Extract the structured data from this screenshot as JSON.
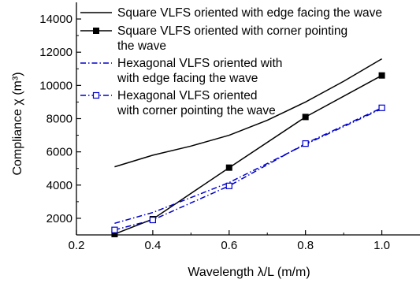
{
  "chart_data": {
    "type": "line",
    "title": "",
    "xlabel": "Wavelength λ/L (m/m)",
    "ylabel": "Compliance χ (m³)",
    "xlim": [
      0.2,
      1.1
    ],
    "ylim": [
      1000,
      15000
    ],
    "x_ticks": [
      0.2,
      0.4,
      0.6,
      0.8,
      1.0
    ],
    "x_tick_labels": [
      "0.2",
      "0.4",
      "0.6",
      "0.8",
      "1.0"
    ],
    "y_ticks": [
      2000,
      4000,
      6000,
      8000,
      10000,
      12000,
      14000
    ],
    "y_tick_labels": [
      "2000",
      "4000",
      "6000",
      "8000",
      "10000",
      "12000",
      "14000"
    ],
    "grid": false,
    "legend_position": "top-left",
    "series": [
      {
        "name_lines": [
          "Square VLFS oriented with edge facing the wave"
        ],
        "color": "#000000",
        "line_style": "solid",
        "marker": "none",
        "points": [
          [
            0.3,
            5100
          ],
          [
            0.4,
            5800
          ],
          [
            0.5,
            6350
          ],
          [
            0.6,
            7000
          ],
          [
            0.7,
            7900
          ],
          [
            0.8,
            9000
          ],
          [
            0.9,
            10250
          ],
          [
            1.0,
            11600
          ]
        ]
      },
      {
        "name_lines": [
          "Square VLFS oriented with corner pointing",
          "the wave"
        ],
        "color": "#000000",
        "line_style": "solid",
        "marker": "filled-square",
        "points": [
          [
            0.3,
            1050
          ],
          [
            0.4,
            1950
          ],
          [
            0.6,
            5050
          ],
          [
            0.8,
            8100
          ],
          [
            1.0,
            10600
          ]
        ]
      },
      {
        "name_lines": [
          "Hexagonal VLFS oriented with",
          "with edge facing the wave"
        ],
        "color": "#0000cc",
        "line_style": "dash-dot",
        "marker": "none",
        "points": [
          [
            0.3,
            1700
          ],
          [
            0.4,
            2350
          ],
          [
            0.6,
            4150
          ],
          [
            0.8,
            6450
          ],
          [
            1.0,
            8600
          ]
        ]
      },
      {
        "name_lines": [
          "Hexagonal VLFS oriented",
          "with corner pointing the wave"
        ],
        "color": "#0000cc",
        "line_style": "dash-dot",
        "marker": "open-square",
        "points": [
          [
            0.3,
            1300
          ],
          [
            0.4,
            1900
          ],
          [
            0.6,
            3950
          ],
          [
            0.8,
            6500
          ],
          [
            1.0,
            8650
          ]
        ]
      }
    ]
  }
}
